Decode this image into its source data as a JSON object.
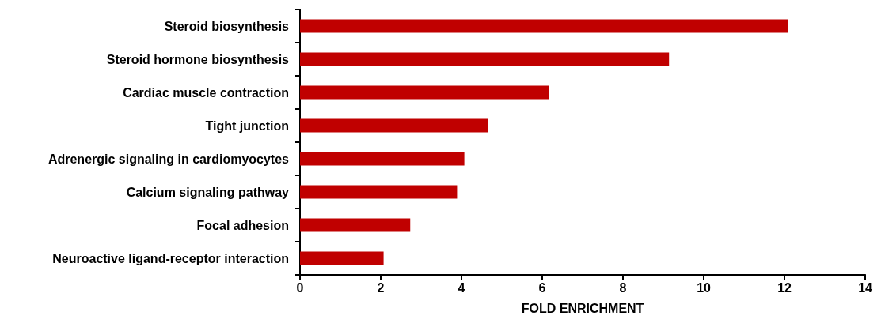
{
  "chart_data": {
    "type": "bar",
    "orientation": "horizontal",
    "xlabel": "FOLD ENRICHMENT",
    "categories": [
      "Steroid biosynthesis",
      "Steroid hormone biosynthesis",
      "Cardiac muscle contraction",
      "Tight junction",
      "Adrenergic signaling in cardiomyocytes",
      "Calcium signaling pathway",
      "Focal adhesion",
      "Neuroactive ligand-receptor interaction"
    ],
    "values": [
      12.08,
      9.14,
      6.16,
      4.65,
      4.07,
      3.89,
      2.73,
      2.07
    ],
    "color": "#c00000",
    "xlim": [
      0,
      14
    ],
    "xticks": [
      0,
      2,
      4,
      6,
      8,
      10,
      12,
      14
    ],
    "grid": false
  }
}
